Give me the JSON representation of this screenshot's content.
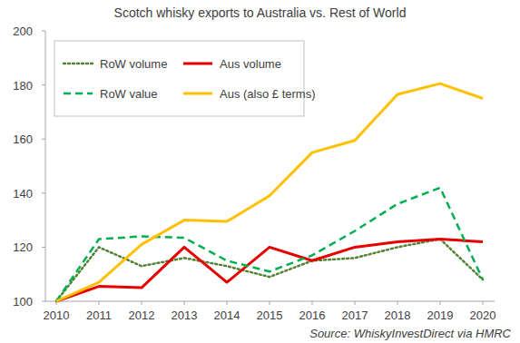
{
  "chart_data": {
    "type": "line",
    "title": "Scotch whisky exports to Australia vs. Rest of World",
    "source": "Source: WhiskyInvestDirect via HMRC",
    "categories": [
      "2010",
      "2011",
      "2012",
      "2013",
      "2014",
      "2015",
      "2016",
      "2017",
      "2018",
      "2019",
      "2020"
    ],
    "series": [
      {
        "name": "RoW volume",
        "color": "#548235",
        "line_style": "dotted",
        "values": [
          100,
          120,
          113,
          116,
          113,
          109,
          115,
          116,
          120,
          123,
          108
        ]
      },
      {
        "name": "Aus volume",
        "color": "#e60000",
        "line_style": "solid",
        "values": [
          100,
          105.5,
          105,
          120,
          107,
          120,
          115,
          120,
          122,
          123,
          122
        ]
      },
      {
        "name": "RoW value",
        "color": "#00b050",
        "line_style": "dashed",
        "values": [
          100,
          123,
          124,
          123.5,
          115,
          111,
          117,
          126,
          136,
          142,
          108
        ]
      },
      {
        "name": "Aus (also £ terms)",
        "color": "#ffc000",
        "line_style": "solid",
        "values": [
          100,
          107,
          121,
          130,
          129.5,
          139,
          155,
          159.5,
          176.5,
          180.5,
          175
        ]
      }
    ],
    "ylim": [
      100,
      200
    ],
    "yticks": [
      100,
      120,
      140,
      160,
      180,
      200
    ],
    "grid": false,
    "legend": "upper left"
  }
}
